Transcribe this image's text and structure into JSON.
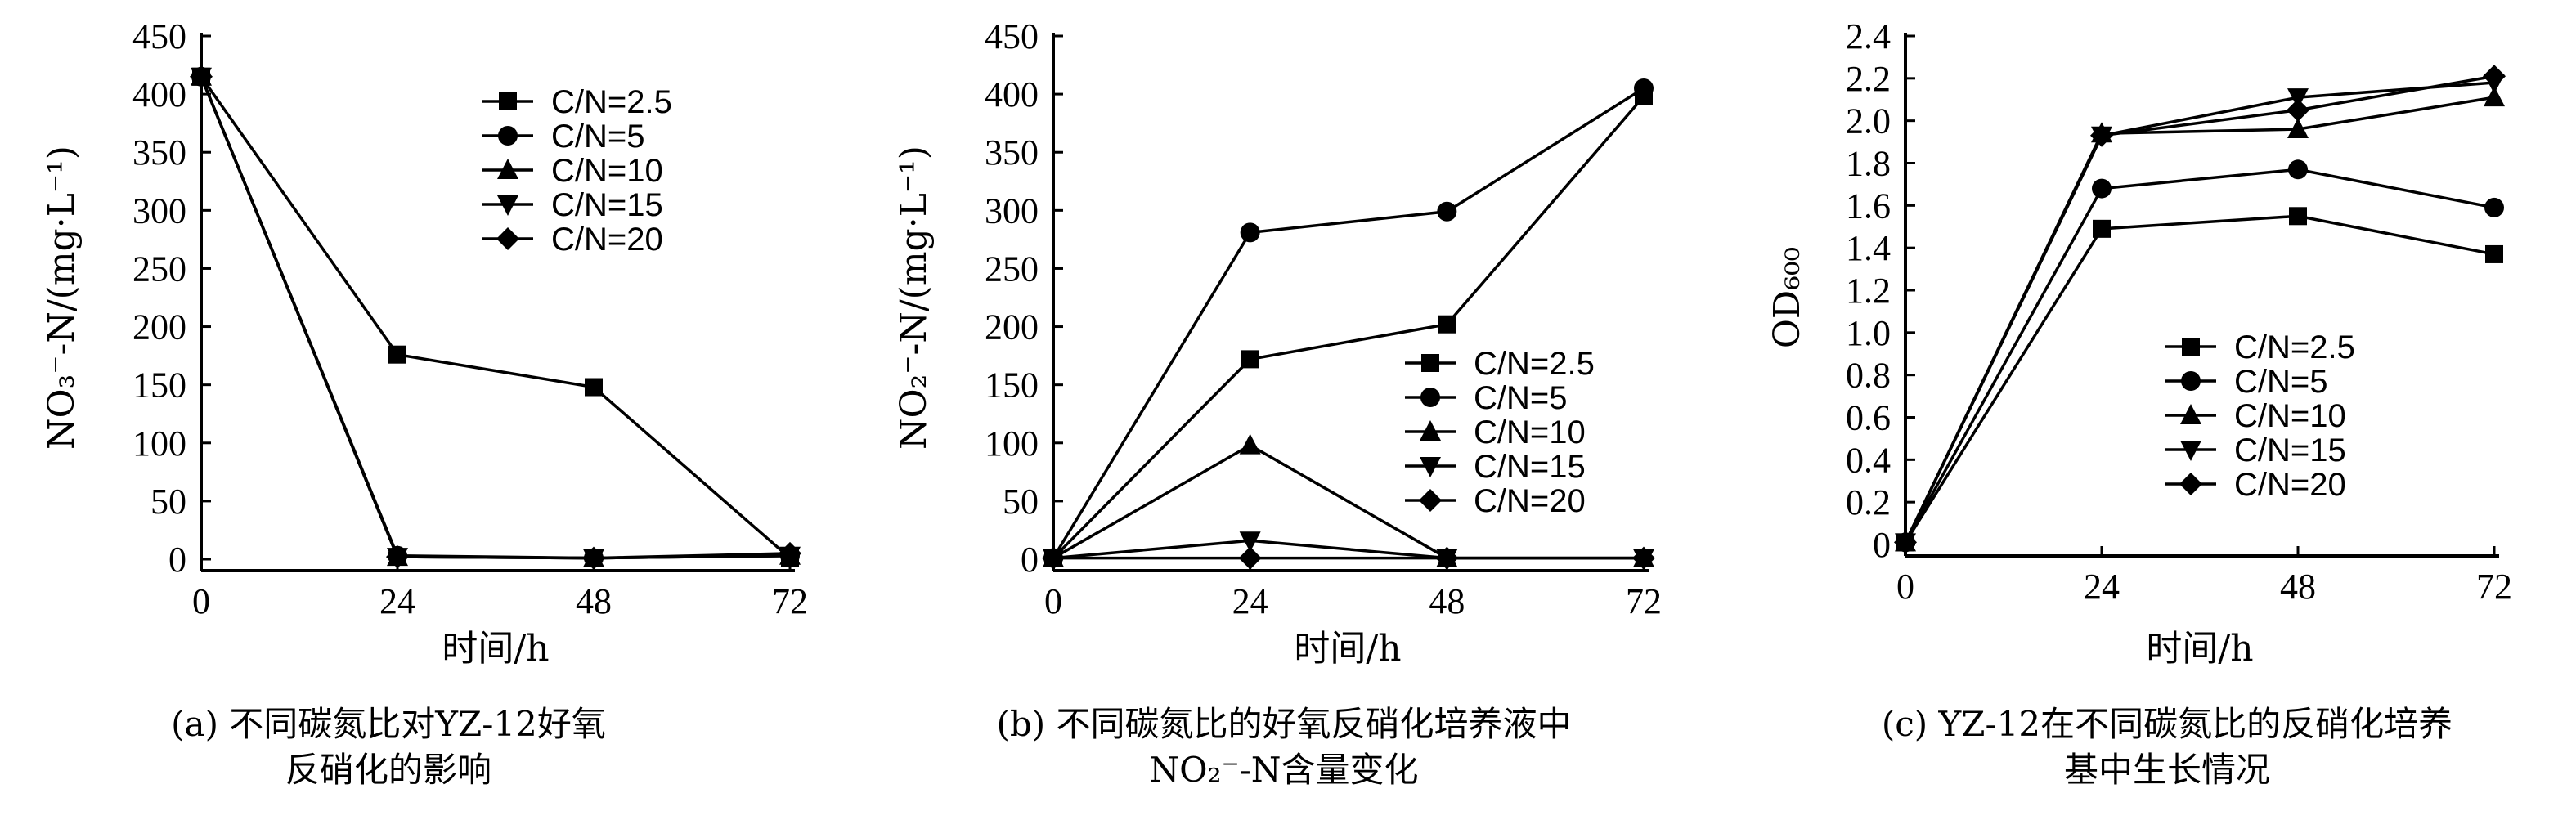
{
  "chart_data": [
    {
      "type": "line",
      "x": [
        0,
        24,
        48,
        72
      ],
      "xlabel": "时间/h",
      "ylabel": "NO₃⁻-N/(mg·L⁻¹)",
      "xlim": [
        0,
        72
      ],
      "ylim": [
        0,
        450
      ],
      "xticks": [
        "0",
        "24",
        "48",
        "72"
      ],
      "yticks": [
        "0",
        "50",
        "100",
        "150",
        "200",
        "250",
        "300",
        "350",
        "400",
        "450"
      ],
      "legend_position": "upper-right",
      "series": [
        {
          "name": "C/N=2.5",
          "marker": "square",
          "values": [
            415,
            176,
            148,
            1
          ]
        },
        {
          "name": "C/N=5",
          "marker": "circle",
          "values": [
            415,
            3,
            1,
            3
          ]
        },
        {
          "name": "C/N=10",
          "marker": "triangle-up",
          "values": [
            415,
            2,
            1,
            3
          ]
        },
        {
          "name": "C/N=15",
          "marker": "triangle-down",
          "values": [
            415,
            2,
            1,
            3
          ]
        },
        {
          "name": "C/N=20",
          "marker": "diamond",
          "values": [
            415,
            2,
            1,
            5
          ]
        }
      ],
      "caption": [
        "(a) 不同碳氮比对YZ-12好氧",
        "反硝化的影响"
      ]
    },
    {
      "type": "line",
      "x": [
        0,
        24,
        48,
        72
      ],
      "xlabel": "时间/h",
      "ylabel": "NO₂⁻-N/(mg·L⁻¹)",
      "xlim": [
        0,
        72
      ],
      "ylim": [
        0,
        450
      ],
      "xticks": [
        "0",
        "24",
        "48",
        "72"
      ],
      "yticks": [
        "0",
        "50",
        "100",
        "150",
        "200",
        "250",
        "300",
        "350",
        "400",
        "450"
      ],
      "legend_position": "center-right",
      "series": [
        {
          "name": "C/N=2.5",
          "marker": "square",
          "values": [
            1,
            172,
            202,
            398
          ]
        },
        {
          "name": "C/N=5",
          "marker": "circle",
          "values": [
            1,
            281,
            299,
            405
          ]
        },
        {
          "name": "C/N=10",
          "marker": "triangle-up",
          "values": [
            1,
            98,
            1,
            1
          ]
        },
        {
          "name": "C/N=15",
          "marker": "triangle-down",
          "values": [
            1,
            16,
            1,
            1
          ]
        },
        {
          "name": "C/N=20",
          "marker": "diamond",
          "values": [
            1,
            1,
            1,
            1
          ]
        }
      ],
      "caption": [
        "(b) 不同碳氮比的好氧反硝化培养液中",
        "NO₂⁻-N含量变化"
      ]
    },
    {
      "type": "line",
      "x": [
        0,
        24,
        48,
        72
      ],
      "xlabel": "时间/h",
      "ylabel": "OD₆₀₀",
      "xlim": [
        0,
        72
      ],
      "ylim": [
        0,
        2.4
      ],
      "xticks": [
        "0",
        "24",
        "48",
        "72"
      ],
      "yticks": [
        "0",
        "0.2",
        "0.4",
        "0.6",
        "0.8",
        "1.0",
        "1.2",
        "1.4",
        "1.6",
        "1.8",
        "2.0",
        "2.2",
        "2.4"
      ],
      "legend_position": "center-right",
      "series": [
        {
          "name": "C/N=2.5",
          "marker": "square",
          "values": [
            0.01,
            1.49,
            1.55,
            1.37
          ]
        },
        {
          "name": "C/N=5",
          "marker": "circle",
          "values": [
            0.01,
            1.68,
            1.77,
            1.59
          ]
        },
        {
          "name": "C/N=10",
          "marker": "triangle-up",
          "values": [
            0.01,
            1.94,
            1.96,
            2.11
          ]
        },
        {
          "name": "C/N=15",
          "marker": "triangle-down",
          "values": [
            0.01,
            1.93,
            2.11,
            2.18
          ]
        },
        {
          "name": "C/N=20",
          "marker": "diamond",
          "values": [
            0.01,
            1.93,
            2.05,
            2.21
          ]
        }
      ],
      "caption": [
        "(c) YZ-12在不同碳氮比的反硝化培养",
        "基中生长情况"
      ]
    }
  ]
}
